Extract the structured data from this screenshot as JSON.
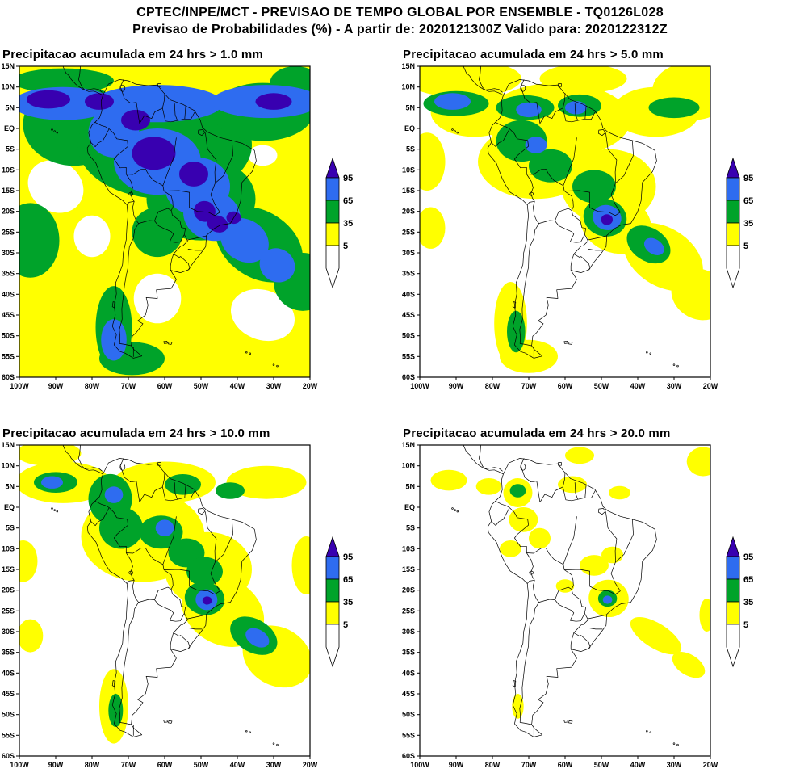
{
  "header": {
    "line1": "CPTEC/INPE/MCT - PREVISAO DE TEMPO GLOBAL POR ENSEMBLE - TQ0126L028",
    "line2": "Previsao de Probabilidades (%) -  A partir de: 2020121300Z   Valido para: 2020122312Z"
  },
  "panels": [
    {
      "id": "gt1",
      "title": "Precipitacao acumulada em 24 hrs > 1.0 mm",
      "threshold_mm": "1.0"
    },
    {
      "id": "gt5",
      "title": "Precipitacao acumulada em 24 hrs > 5.0 mm",
      "threshold_mm": "5.0"
    },
    {
      "id": "gt10",
      "title": "Precipitacao acumulada em 24 hrs > 10.0 mm",
      "threshold_mm": "10.0"
    },
    {
      "id": "gt20",
      "title": "Precipitacao acumulada em 24 hrs > 20.0 mm",
      "threshold_mm": "20.0"
    }
  ],
  "axes": {
    "lat_labels": [
      "15N",
      "10N",
      "5N",
      "EQ",
      "5S",
      "10S",
      "15S",
      "20S",
      "25S",
      "30S",
      "35S",
      "40S",
      "45S",
      "50S",
      "55S",
      "60S"
    ],
    "lon_labels": [
      "100W",
      "90W",
      "80W",
      "70W",
      "60W",
      "50W",
      "40W",
      "30W",
      "20W"
    ]
  },
  "legend": {
    "values": [
      "95",
      "65",
      "35",
      "5"
    ],
    "colors": {
      "p95_plus": "#3800b0",
      "p65_95": "#2e6cf0",
      "p35_65": "#00a32a",
      "p5_35": "#ffff00",
      "below5": "#ffffff"
    }
  },
  "variable": "Probabilidade de precipitacao (%)",
  "region": {
    "lon_range": "100W-20W",
    "lat_range": "60S-15N"
  }
}
